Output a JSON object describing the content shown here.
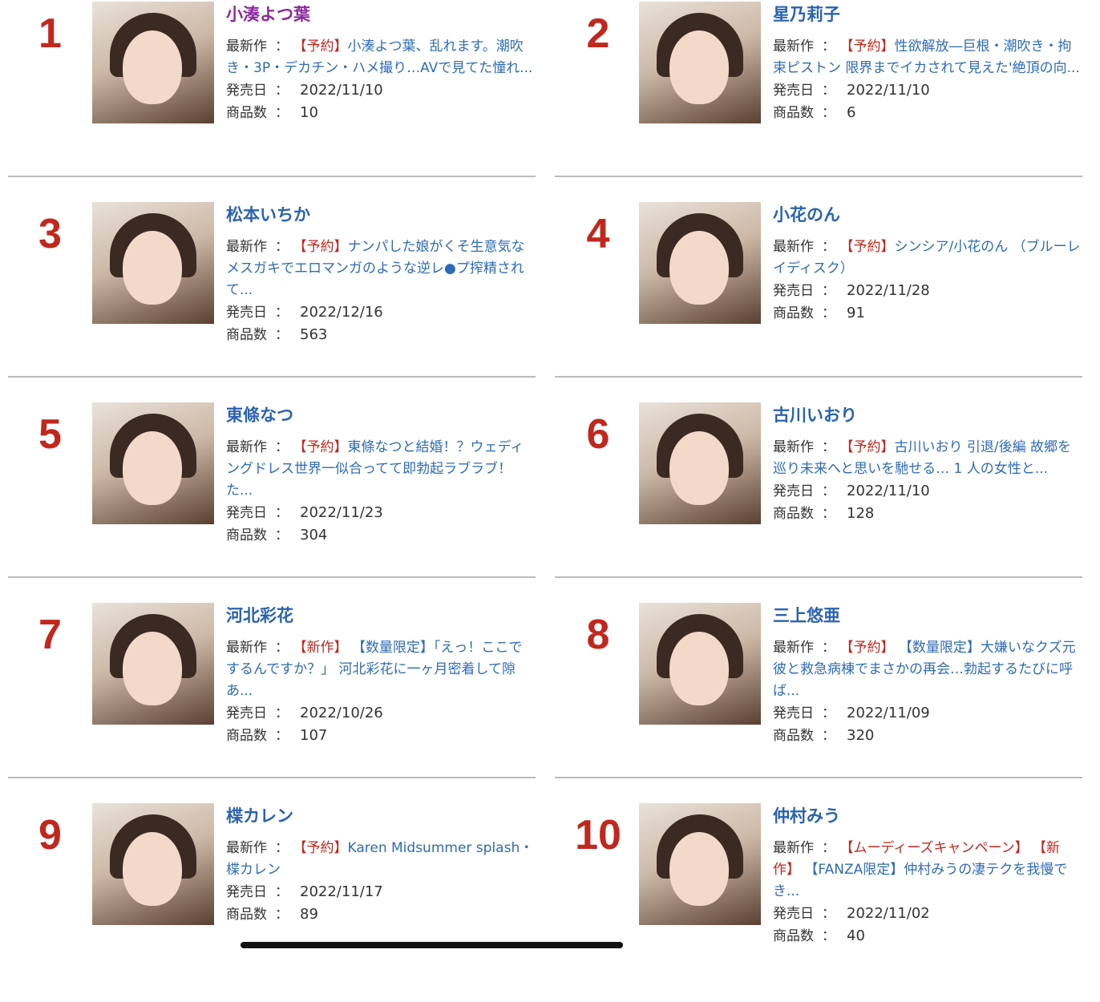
{
  "labels": {
    "latest": "最新作",
    "release": "発売日",
    "count": "商品数",
    "colon": "："
  },
  "items": [
    {
      "rank": "1",
      "name": "小湊よつ葉",
      "visited": true,
      "tag": "【予約】",
      "title": "小湊よつ葉、乱れます。潮吹き・3P・デカチン・ハメ撮り…AVで見てた憧れ...",
      "date": "2022/11/10",
      "count": "10"
    },
    {
      "rank": "2",
      "name": "星乃莉子",
      "visited": false,
      "tag": "【予約】",
      "title": "性欲解放―巨根・潮吹き・拘束ピストン 限界までイカされて見えた'絶頂の向...",
      "date": "2022/11/10",
      "count": "6"
    },
    {
      "rank": "3",
      "name": "松本いちか",
      "visited": false,
      "tag": "【予約】",
      "title": "ナンパした娘がくそ生意気なメスガキでエロマンガのような逆レ●プ搾精されて...",
      "date": "2022/12/16",
      "count": "563"
    },
    {
      "rank": "4",
      "name": "小花のん",
      "visited": false,
      "tag": "【予約】",
      "title": "シンシア/小花のん （ブルーレイディスク）",
      "date": "2022/11/28",
      "count": "91"
    },
    {
      "rank": "5",
      "name": "東條なつ",
      "visited": false,
      "tag": "【予約】",
      "title": "東條なつと結婚！？ウェディングドレス世界一似合ってて即勃起ラブラブ！ た...",
      "date": "2022/11/23",
      "count": "304"
    },
    {
      "rank": "6",
      "name": "古川いおり",
      "visited": false,
      "tag": "【予約】",
      "title": "古川いおり 引退/後編 故郷を巡り未来へと思いを馳せる… 1 人の女性と...",
      "date": "2022/11/10",
      "count": "128"
    },
    {
      "rank": "7",
      "name": "河北彩花",
      "visited": false,
      "tag": "【新作】",
      "title": " 【数量限定】「えっ！ここでするんですか？」 河北彩花に一ヶ月密着して隙あ...",
      "date": "2022/10/26",
      "count": "107"
    },
    {
      "rank": "8",
      "name": "三上悠亜",
      "visited": false,
      "tag": "【予約】",
      "title": " 【数量限定】大嫌いなクズ元彼と救急病棟でまさかの再会…勃起するたびに呼ば...",
      "date": "2022/11/09",
      "count": "320"
    },
    {
      "rank": "9",
      "name": "楪カレン",
      "visited": false,
      "tag": "【予約】",
      "title": "Karen Midsummer splash・楪カレン",
      "date": "2022/11/17",
      "count": "89"
    },
    {
      "rank": "10",
      "name": "仲村みう",
      "visited": false,
      "tag": "【ムーディーズキャンペーン】 【新作】",
      "title": " 【FANZA限定】仲村みうの凄テクを我慢でき...",
      "date": "2022/11/02",
      "count": "40"
    }
  ]
}
